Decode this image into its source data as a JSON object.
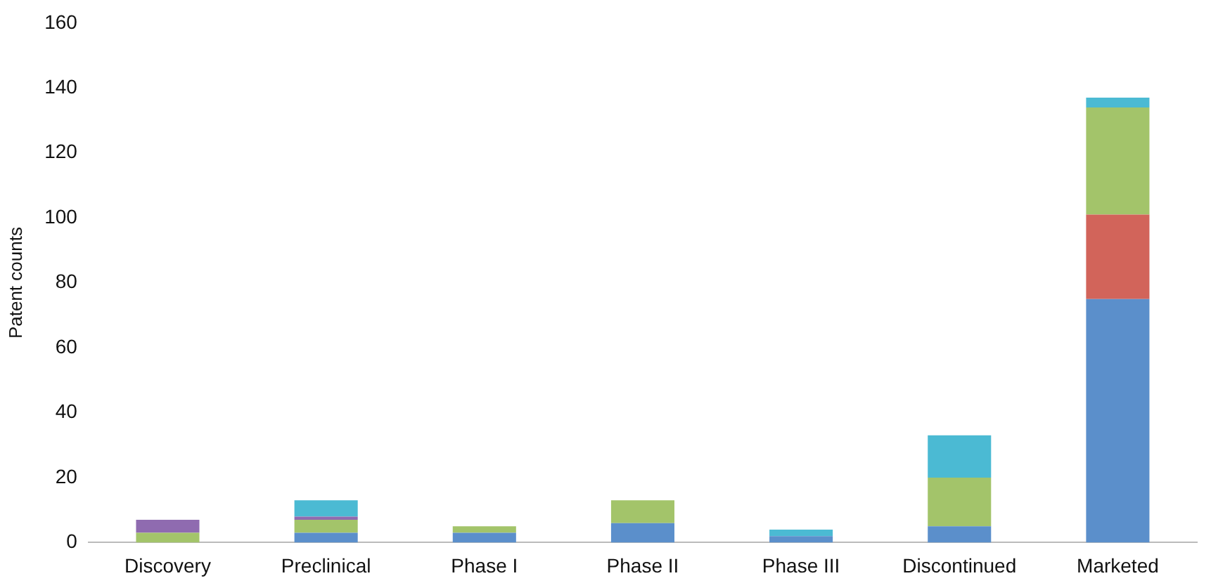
{
  "chart_data": {
    "type": "bar",
    "stacked": true,
    "ylabel": "Patent counts",
    "categories": [
      "Discovery",
      "Preclinical",
      "Phase I",
      "Phase II",
      "Phase III",
      "Discontinued",
      "Marketed"
    ],
    "series": [
      {
        "color": "#5b8fcb",
        "values": [
          0,
          3,
          3,
          6,
          2,
          5,
          75
        ]
      },
      {
        "color": "#d2645a",
        "values": [
          0,
          0,
          0,
          0,
          0,
          0,
          26
        ]
      },
      {
        "color": "#a3c46a",
        "values": [
          3,
          4,
          2,
          7,
          0,
          15,
          33
        ]
      },
      {
        "color": "#8f6bb0",
        "values": [
          4,
          1,
          0,
          0,
          0,
          0,
          0
        ]
      },
      {
        "color": "#4bbad3",
        "values": [
          0,
          5,
          0,
          0,
          2,
          13,
          3
        ]
      }
    ],
    "ylim": [
      0,
      160
    ],
    "yticks": [
      0,
      20,
      40,
      60,
      80,
      100,
      120,
      140,
      160
    ],
    "grid": false,
    "legend": false
  }
}
